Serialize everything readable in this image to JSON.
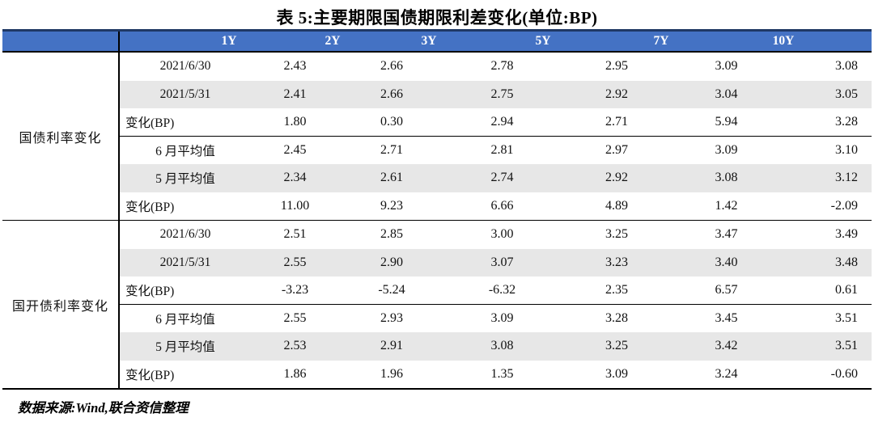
{
  "title": "表 5:主要期限国债期限利差变化(单位:BP)",
  "columns": [
    "1Y",
    "2Y",
    "3Y",
    "5Y",
    "7Y",
    "10Y"
  ],
  "groups": [
    {
      "label": "国债利率变化",
      "rows": [
        {
          "label": "2021/6/30",
          "values": [
            "2.43",
            "2.66",
            "2.78",
            "2.95",
            "3.09",
            "3.08"
          ]
        },
        {
          "label": "2021/5/31",
          "values": [
            "2.41",
            "2.66",
            "2.75",
            "2.92",
            "3.04",
            "3.05"
          ]
        },
        {
          "label": "变化(BP)",
          "values": [
            "1.80",
            "0.30",
            "2.94",
            "2.71",
            "5.94",
            "3.28"
          ]
        },
        {
          "label": "6 月平均值",
          "values": [
            "2.45",
            "2.71",
            "2.81",
            "2.97",
            "3.09",
            "3.10"
          ]
        },
        {
          "label": "5 月平均值",
          "values": [
            "2.34",
            "2.61",
            "2.74",
            "2.92",
            "3.08",
            "3.12"
          ]
        },
        {
          "label": "变化(BP)",
          "values": [
            "11.00",
            "9.23",
            "6.66",
            "4.89",
            "1.42",
            "-2.09"
          ]
        }
      ]
    },
    {
      "label": "国开债利率变化",
      "rows": [
        {
          "label": "2021/6/30",
          "values": [
            "2.51",
            "2.85",
            "3.00",
            "3.25",
            "3.47",
            "3.49"
          ]
        },
        {
          "label": "2021/5/31",
          "values": [
            "2.55",
            "2.90",
            "3.07",
            "3.23",
            "3.40",
            "3.48"
          ]
        },
        {
          "label": "变化(BP)",
          "values": [
            "-3.23",
            "-5.24",
            "-6.32",
            "2.35",
            "6.57",
            "0.61"
          ]
        },
        {
          "label": "6 月平均值",
          "values": [
            "2.55",
            "2.93",
            "3.09",
            "3.28",
            "3.45",
            "3.51"
          ]
        },
        {
          "label": "5 月平均值",
          "values": [
            "2.53",
            "2.91",
            "3.08",
            "3.25",
            "3.42",
            "3.51"
          ]
        },
        {
          "label": "变化(BP)",
          "values": [
            "1.86",
            "1.96",
            "1.35",
            "3.09",
            "3.24",
            "-0.60"
          ]
        }
      ]
    }
  ],
  "footer": "数据来源:Wind,联合资信整理",
  "colors": {
    "header_bg": "#4472c4",
    "header_top_border": "#1f3864",
    "row_shade": "#e7e7e7",
    "header_text": "#ffffff"
  }
}
